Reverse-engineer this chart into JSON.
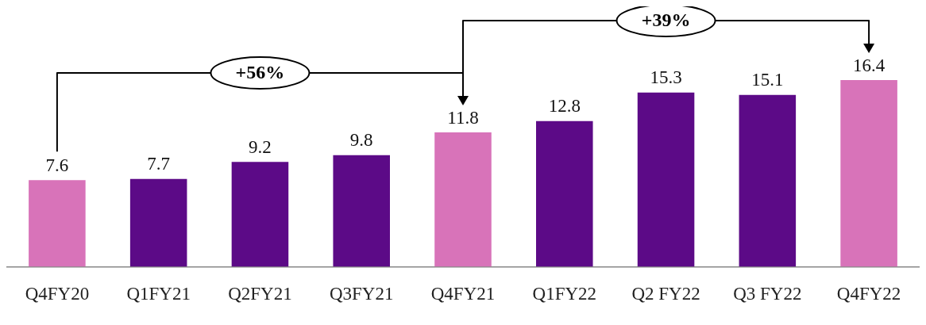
{
  "chart_data": {
    "type": "bar",
    "categories": [
      "Q4FY20",
      "Q1FY21",
      "Q2FY21",
      "Q3FY21",
      "Q4FY21",
      "Q1FY22",
      "Q2 FY22",
      "Q3 FY22",
      "Q4FY22"
    ],
    "values": [
      7.6,
      7.7,
      9.2,
      9.8,
      11.8,
      12.8,
      15.3,
      15.1,
      16.4
    ],
    "colors": [
      "#d873b9",
      "#5c0a87",
      "#5c0a87",
      "#5c0a87",
      "#d873b9",
      "#5c0a87",
      "#5c0a87",
      "#5c0a87",
      "#d873b9"
    ],
    "data_labels": true,
    "annotations": [
      "+56%",
      "+39%"
    ]
  }
}
